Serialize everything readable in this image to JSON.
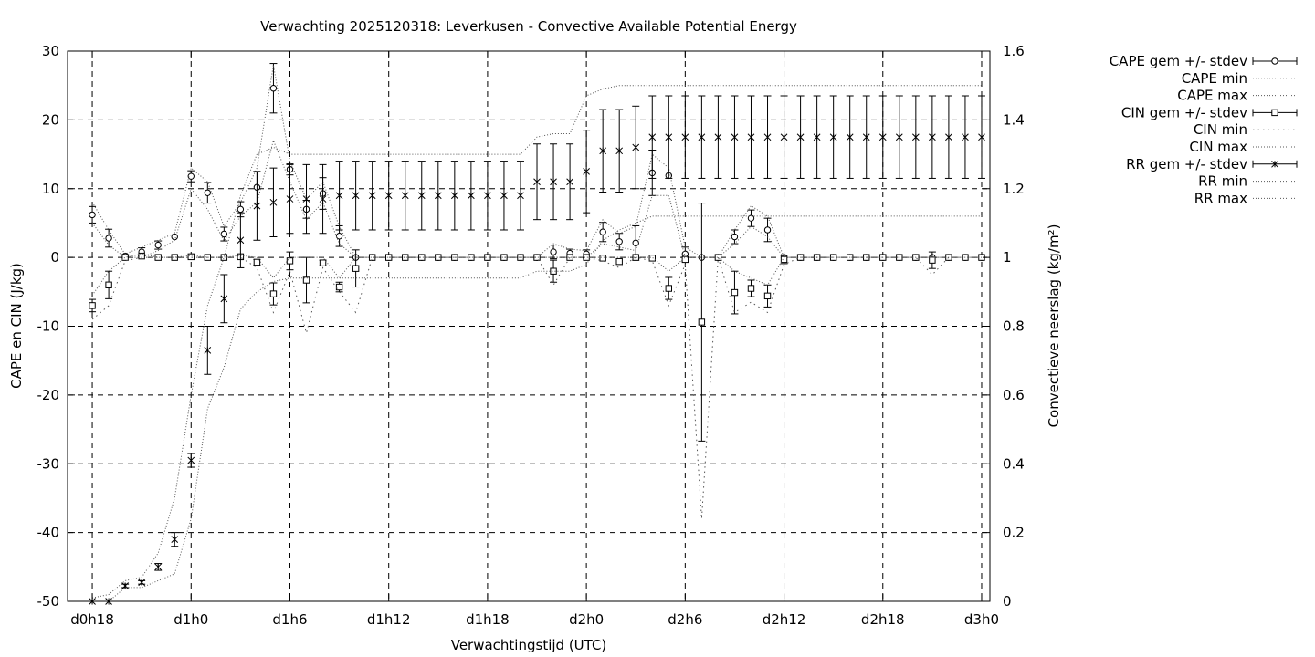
{
  "chart_data": {
    "type": "line",
    "title": "Verwachting 2025120318: Leverkusen - Convective Available Potential Energy",
    "xlabel": "Verwachtingstijd (UTC)",
    "ylabel": "CAPE en CIN (J/kg)",
    "y2label": "Convectieve neerslag (kg/m²)",
    "ylim": [
      -50,
      30
    ],
    "y2lim": [
      0,
      1.6
    ],
    "x_unit": "hours from d0h0",
    "xlim": [
      16.5,
      72.5
    ],
    "grid": true,
    "legend_position": "outside-right",
    "x_ticks": [
      {
        "x": 18,
        "label": "d0h18"
      },
      {
        "x": 24,
        "label": "d1h0"
      },
      {
        "x": 30,
        "label": "d1h6"
      },
      {
        "x": 36,
        "label": "d1h12"
      },
      {
        "x": 42,
        "label": "d1h18"
      },
      {
        "x": 48,
        "label": "d2h0"
      },
      {
        "x": 54,
        "label": "d2h6"
      },
      {
        "x": 60,
        "label": "d2h12"
      },
      {
        "x": 66,
        "label": "d2h18"
      },
      {
        "x": 72,
        "label": "d3h0"
      }
    ],
    "y_ticks": [
      {
        "v": 30,
        "label": "30"
      },
      {
        "v": 20,
        "label": "20"
      },
      {
        "v": 10,
        "label": "10"
      },
      {
        "v": 0,
        "label": "0"
      },
      {
        "v": -10,
        "label": "-10"
      },
      {
        "v": -20,
        "label": "-20"
      },
      {
        "v": -30,
        "label": "-30"
      },
      {
        "v": -40,
        "label": "-40"
      },
      {
        "v": -50,
        "label": "-50"
      }
    ],
    "y2_ticks": [
      {
        "v": 1.6,
        "label": "1.6"
      },
      {
        "v": 1.4,
        "label": "1.4"
      },
      {
        "v": 1.2,
        "label": "1.2"
      },
      {
        "v": 1.0,
        "label": "1"
      },
      {
        "v": 0.8,
        "label": "0.8"
      },
      {
        "v": 0.6,
        "label": "0.6"
      },
      {
        "v": 0.4,
        "label": "0.4"
      },
      {
        "v": 0.2,
        "label": "0.2"
      },
      {
        "v": 0,
        "label": "0"
      }
    ],
    "x": [
      18,
      19,
      20,
      21,
      22,
      23,
      24,
      25,
      26,
      27,
      28,
      29,
      30,
      31,
      32,
      33,
      34,
      35,
      36,
      37,
      38,
      39,
      40,
      41,
      42,
      43,
      44,
      45,
      46,
      47,
      48,
      49,
      50,
      51,
      52,
      53,
      54,
      55,
      56,
      57,
      58,
      59,
      60,
      61,
      62,
      63,
      64,
      65,
      66,
      67,
      68,
      69,
      70,
      71,
      72
    ],
    "series": [
      {
        "name": "CAPE gem +/- stdev",
        "axis": "y",
        "marker": "circle",
        "mean": [
          6.2,
          2.8,
          0.2,
          0.8,
          1.8,
          3.0,
          11.8,
          9.4,
          3.4,
          7.0,
          10.2,
          24.6,
          12.8,
          7.0,
          9.3,
          3.1,
          0,
          0,
          0,
          0,
          0,
          0,
          0,
          0,
          0,
          0,
          0,
          0,
          0.8,
          0.6,
          0.5,
          3.7,
          2.3,
          2.1,
          12.3,
          11.9,
          0.5,
          0,
          0,
          3.0,
          5.7,
          4.0,
          0,
          0,
          0,
          0,
          0,
          0,
          0,
          0,
          0,
          0,
          0,
          0,
          0
        ],
        "stdev": [
          1.2,
          1.3,
          0.2,
          0.6,
          0.6,
          0,
          0.8,
          1.5,
          1.0,
          1.1,
          2.3,
          3.6,
          0.8,
          1.3,
          2.3,
          1.5,
          0,
          0,
          0,
          0,
          0,
          0,
          0,
          0,
          0,
          0,
          0,
          0,
          1.0,
          0.6,
          0.6,
          1.4,
          1.2,
          2.5,
          3.3,
          0,
          1.0,
          0,
          0,
          1.0,
          1.2,
          1.7,
          0,
          0,
          0,
          0,
          0,
          0,
          0,
          0,
          0,
          0,
          0,
          0,
          0
        ]
      },
      {
        "name": "CAPE min",
        "axis": "y",
        "values": [
          5,
          1.8,
          0,
          0,
          1,
          2.5,
          10,
          7,
          2.4,
          6,
          8,
          17,
          11,
          5.5,
          8,
          2,
          0,
          0,
          0,
          0,
          0,
          0,
          0,
          0,
          0,
          0,
          0,
          0,
          0,
          0,
          0,
          2,
          1.5,
          1,
          9,
          9,
          0,
          0,
          0,
          2,
          4.5,
          3,
          0,
          0,
          0,
          0,
          0,
          0,
          0,
          0,
          0,
          0,
          0,
          0,
          0
        ]
      },
      {
        "name": "CAPE max",
        "axis": "y",
        "values": [
          8,
          4,
          0.5,
          1.5,
          2.5,
          3.5,
          13,
          11,
          4.5,
          8,
          13,
          28,
          14,
          8.5,
          11,
          4.5,
          0,
          0,
          0,
          0,
          0,
          0,
          0,
          0,
          0,
          0,
          0,
          0,
          2,
          1.2,
          1,
          5.5,
          3.5,
          4.5,
          15,
          13,
          1.5,
          0,
          0,
          4,
          7.5,
          6,
          0,
          0,
          0,
          0,
          0,
          0,
          0,
          0,
          0,
          0,
          0,
          0,
          0
        ]
      },
      {
        "name": "CIN gem +/- stdev",
        "axis": "y",
        "marker": "square",
        "mean": [
          -7,
          -4,
          0,
          0.2,
          0,
          0,
          0.1,
          0,
          0,
          0.1,
          -0.7,
          -5.3,
          -0.5,
          -3.3,
          -0.8,
          -4.3,
          -1.6,
          0,
          0,
          0,
          0,
          0,
          0,
          0,
          0,
          0,
          0,
          0,
          -2,
          0,
          0,
          -0.1,
          -0.6,
          0,
          -0.1,
          -4.5,
          -0.3,
          -9.4,
          0,
          -5.1,
          -4.5,
          -5.6,
          -0.3,
          0,
          0,
          0,
          0,
          0,
          0,
          0,
          0,
          -0.4,
          0,
          0,
          0
        ],
        "stdev": [
          0.9,
          2.0,
          0,
          0,
          0,
          0,
          0,
          0,
          0,
          0,
          0.4,
          1.6,
          1.3,
          3.3,
          0.4,
          0.7,
          2.7,
          0,
          0,
          0,
          0,
          0,
          0,
          0,
          0,
          0,
          0,
          0,
          1.6,
          0,
          0,
          0,
          0,
          0,
          0,
          1.6,
          0,
          17.3,
          0,
          3.1,
          1.2,
          1.6,
          0.6,
          0,
          0,
          0,
          0,
          0,
          0,
          0,
          0,
          1.2,
          0,
          0,
          0
        ]
      },
      {
        "name": "CIN min",
        "axis": "y",
        "values": [
          -9,
          -7,
          -0.5,
          0,
          0,
          0,
          0,
          0,
          0,
          0,
          -1.5,
          -8,
          -2,
          -11,
          -1.5,
          -5,
          -8,
          0,
          0,
          0,
          0,
          0,
          0,
          0,
          0,
          0,
          0,
          0,
          -4,
          0,
          0,
          -0.5,
          -1.5,
          0,
          -0.5,
          -7,
          -1,
          -38,
          0,
          -8,
          -6.5,
          -8,
          -1,
          0,
          0,
          0,
          0,
          0,
          0,
          0,
          0,
          -2.5,
          0,
          0,
          0
        ]
      },
      {
        "name": "CIN max",
        "axis": "y",
        "values": [
          -5.5,
          -2,
          0,
          0.5,
          0,
          0,
          0.3,
          0,
          0,
          0.3,
          0,
          -3,
          0,
          0,
          0,
          -3,
          0,
          0,
          0,
          0,
          0,
          0,
          0,
          0,
          0,
          0,
          0,
          0,
          0,
          0,
          0,
          0,
          0,
          0,
          0,
          -2,
          0,
          0,
          0,
          -2,
          -3,
          -4,
          0,
          0,
          0,
          0,
          0,
          0,
          0,
          0,
          0,
          0,
          0,
          0,
          0
        ]
      },
      {
        "name": "RR gem +/- stdev",
        "axis": "y2",
        "marker": "star",
        "mean": [
          0,
          0,
          0.045,
          0.055,
          0.1,
          0.18,
          0.41,
          0.73,
          0.88,
          1.05,
          1.15,
          1.16,
          1.17,
          1.17,
          1.17,
          1.18,
          1.18,
          1.18,
          1.18,
          1.18,
          1.18,
          1.18,
          1.18,
          1.18,
          1.18,
          1.18,
          1.18,
          1.22,
          1.22,
          1.22,
          1.25,
          1.31,
          1.31,
          1.32,
          1.35,
          1.35,
          1.35,
          1.35,
          1.35,
          1.35,
          1.35,
          1.35,
          1.35,
          1.35,
          1.35,
          1.35,
          1.35,
          1.35,
          1.35,
          1.35,
          1.35,
          1.35,
          1.35,
          1.35,
          1.35
        ],
        "stdev": [
          0,
          0,
          0.005,
          0.005,
          0.01,
          0.02,
          0.02,
          0.07,
          0.07,
          0.08,
          0.1,
          0.1,
          0.1,
          0.1,
          0.1,
          0.1,
          0.1,
          0.1,
          0.1,
          0.1,
          0.1,
          0.1,
          0.1,
          0.1,
          0.1,
          0.1,
          0.1,
          0.11,
          0.11,
          0.11,
          0.12,
          0.12,
          0.12,
          0.12,
          0.12,
          0.12,
          0.12,
          0.12,
          0.12,
          0.12,
          0.12,
          0.12,
          0.12,
          0.12,
          0.12,
          0.12,
          0.12,
          0.12,
          0.12,
          0.12,
          0.12,
          0.12,
          0.12,
          0.12,
          0.12
        ]
      },
      {
        "name": "RR min",
        "axis": "y2",
        "values": [
          0,
          0,
          0.04,
          0.04,
          0.06,
          0.08,
          0.24,
          0.56,
          0.68,
          0.85,
          0.9,
          0.93,
          0.94,
          0.94,
          0.94,
          0.94,
          0.94,
          0.94,
          0.94,
          0.94,
          0.94,
          0.94,
          0.94,
          0.94,
          0.94,
          0.94,
          0.94,
          0.96,
          0.96,
          0.96,
          0.98,
          1.05,
          1.08,
          1.1,
          1.12,
          1.12,
          1.12,
          1.12,
          1.12,
          1.12,
          1.12,
          1.12,
          1.12,
          1.12,
          1.12,
          1.12,
          1.12,
          1.12,
          1.12,
          1.12,
          1.12,
          1.12,
          1.12,
          1.12,
          1.12
        ]
      },
      {
        "name": "RR max",
        "axis": "y2",
        "values": [
          0.01,
          0.02,
          0.06,
          0.07,
          0.14,
          0.3,
          0.6,
          0.86,
          1.0,
          1.18,
          1.3,
          1.32,
          1.3,
          1.3,
          1.3,
          1.3,
          1.3,
          1.3,
          1.3,
          1.3,
          1.3,
          1.3,
          1.3,
          1.3,
          1.3,
          1.3,
          1.3,
          1.35,
          1.36,
          1.36,
          1.47,
          1.49,
          1.5,
          1.5,
          1.5,
          1.5,
          1.5,
          1.5,
          1.5,
          1.5,
          1.5,
          1.5,
          1.5,
          1.5,
          1.5,
          1.5,
          1.5,
          1.5,
          1.5,
          1.5,
          1.5,
          1.5,
          1.5,
          1.5,
          1.5
        ]
      }
    ]
  }
}
